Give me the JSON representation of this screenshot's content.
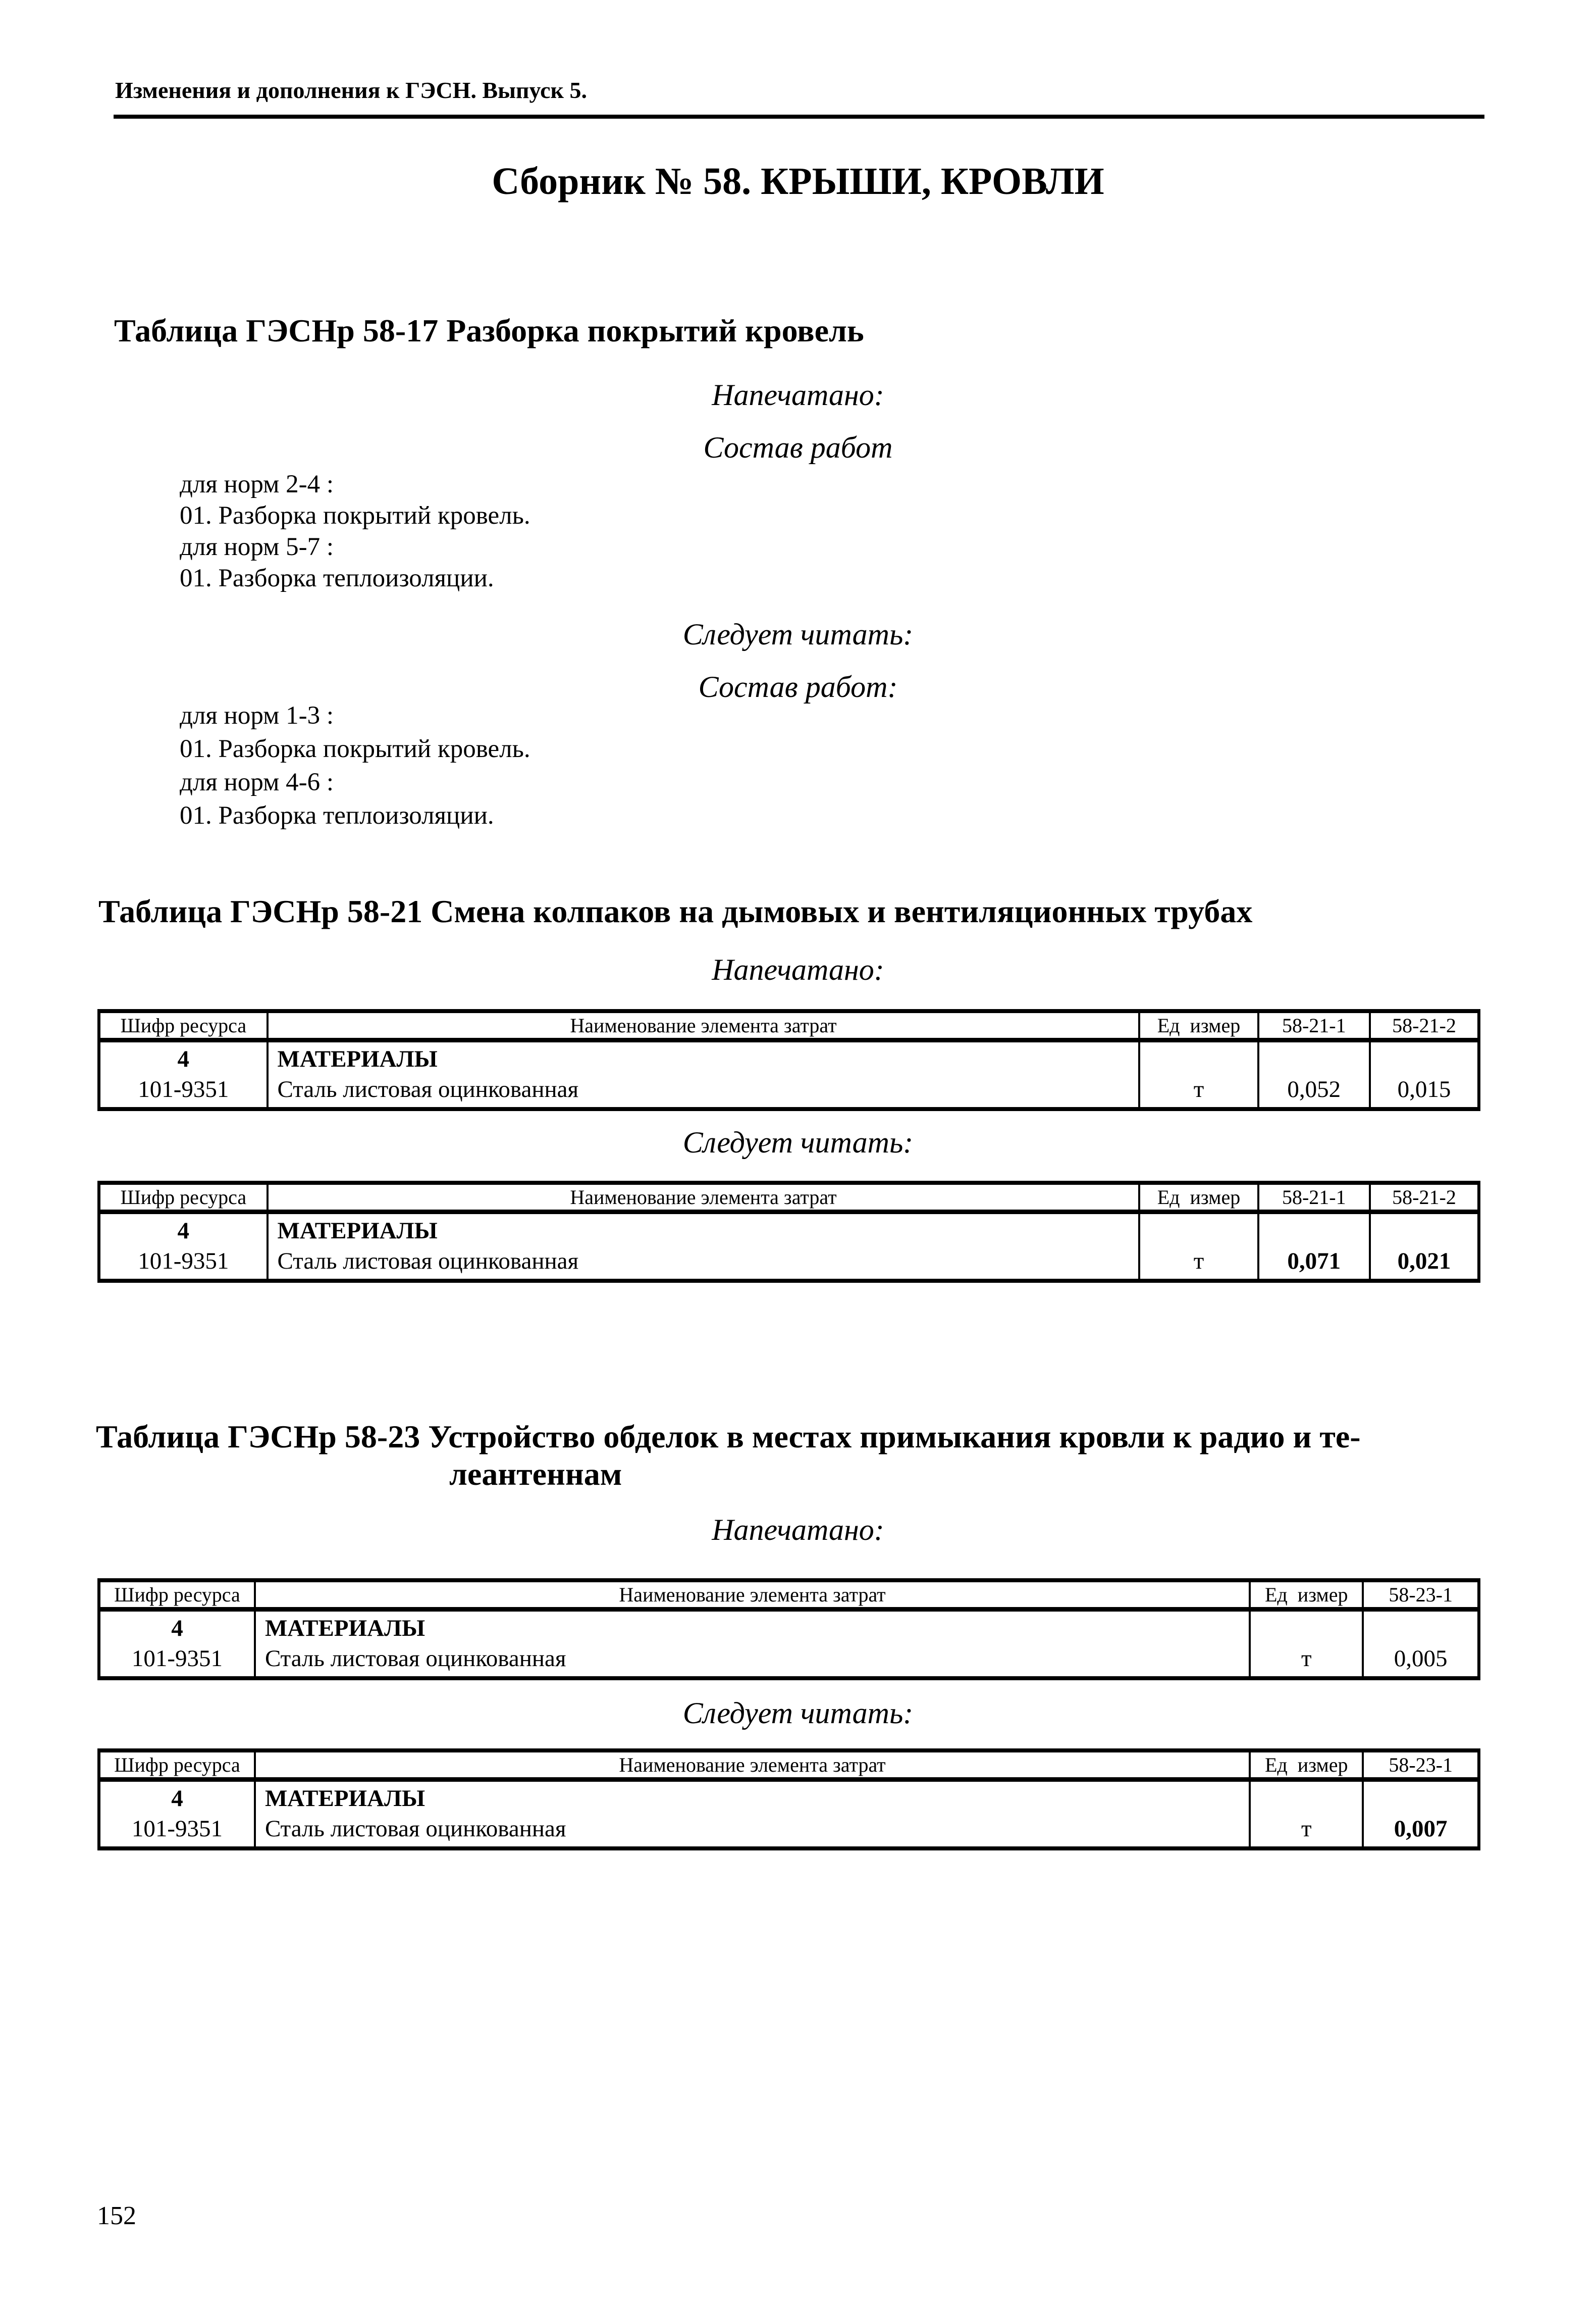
{
  "page": {
    "header": "Изменения и дополнения к ГЭСН. Выпуск 5.",
    "title": "Сборник № 58. КРЫШИ, КРОВЛИ",
    "page_number": "152"
  },
  "labels": {
    "printed": "Напечатано:",
    "should_read": "Следует читать:",
    "sostav": "Состав работ",
    "sostav_colon": "Состав работ:"
  },
  "section_58_17": {
    "heading": "Таблица ГЭСНр 58-17 Разборка покрытий кровель",
    "printed_lines": [
      "для норм 2-4 :",
      "01. Разборка покрытий кровель.",
      "для норм 5-7 :",
      "01. Разборка теплоизоляции."
    ],
    "corrected_lines": [
      "для норм 1-3 :",
      "01. Разборка покрытий кровель.",
      "для норм 4-6 :",
      "01. Разборка теплоизоляции."
    ]
  },
  "section_58_21": {
    "heading": "Таблица ГЭСНр 58-21 Смена колпаков на дымовых и вентиляционных трубах",
    "printed_table": {
      "headers": [
        "Шифр ресурса",
        "Наименование элемента затрат",
        "Ед  измер",
        "58-21-1",
        "58-21-2"
      ],
      "rows": [
        [
          {
            "t": "4",
            "b": true
          },
          {
            "t": "МАТЕРИАЛЫ",
            "b": true
          },
          "",
          "",
          ""
        ],
        [
          "101-9351",
          "Сталь листовая оцинкованная",
          "т",
          "0,052",
          "0,015"
        ]
      ]
    },
    "corrected_table": {
      "headers": [
        "Шифр ресурса",
        "Наименование элемента затрат",
        "Ед  измер",
        "58-21-1",
        "58-21-2"
      ],
      "rows": [
        [
          {
            "t": "4",
            "b": true
          },
          {
            "t": "МАТЕРИАЛЫ",
            "b": true
          },
          "",
          "",
          ""
        ],
        [
          "101-9351",
          "Сталь листовая оцинкованная",
          "т",
          {
            "t": "0,071",
            "b": true
          },
          {
            "t": "0,021",
            "b": true
          }
        ]
      ]
    }
  },
  "section_58_23": {
    "heading_line1": "Таблица ГЭСНр 58-23 Устройство обделок в местах примыкания кровли к радио и те-",
    "heading_line2": "леантеннам",
    "printed_table": {
      "headers": [
        "Шифр ресурса",
        "Наименование элемента затрат",
        "Ед  измер",
        "58-23-1"
      ],
      "rows": [
        [
          {
            "t": "4",
            "b": true
          },
          {
            "t": "МАТЕРИАЛЫ",
            "b": true
          },
          "",
          ""
        ],
        [
          "101-9351",
          "Сталь листовая оцинкованная",
          "т",
          "0,005"
        ]
      ]
    },
    "corrected_table": {
      "headers": [
        "Шифр ресурса",
        "Наименование элемента затрат",
        "Ед  измер",
        "58-23-1"
      ],
      "rows": [
        [
          {
            "t": "4",
            "b": true
          },
          {
            "t": "МАТЕРИАЛЫ",
            "b": true
          },
          "",
          ""
        ],
        [
          "101-9351",
          "Сталь листовая оцинкованная",
          "т",
          {
            "t": "0,007",
            "b": true
          }
        ]
      ]
    }
  }
}
